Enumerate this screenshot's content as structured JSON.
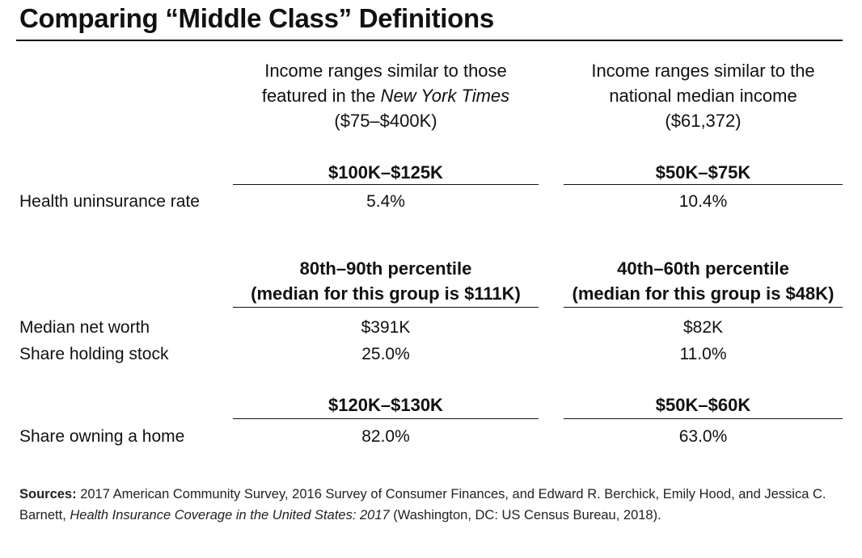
{
  "title": "Comparing “Middle Class” Definitions",
  "columns": [
    {
      "head_line1": "Income ranges similar to those",
      "head_line2_pre": "featured in  the ",
      "head_line2_italic": "New York Times",
      "head_line3": "($75–$400K)"
    },
    {
      "head_line1": "Income ranges similar to the",
      "head_line2_pre": "national median income",
      "head_line2_italic": "",
      "head_line3": "($61,372)"
    }
  ],
  "sections": [
    {
      "group_labels": [
        [
          "$100K–$125K"
        ],
        [
          "$50K–$75K"
        ]
      ],
      "rows": [
        {
          "label": "Health uninsurance rate",
          "values": [
            "5.4%",
            "10.4%"
          ]
        }
      ]
    },
    {
      "group_labels": [
        [
          "80th–90th percentile",
          "(median for this group is $111K)"
        ],
        [
          "40th–60th percentile",
          "(median for this group is $48K)"
        ]
      ],
      "rows": [
        {
          "label": "Median net worth",
          "values": [
            "$391K",
            "$82K"
          ]
        },
        {
          "label": "Share holding stock",
          "values": [
            "25.0%",
            "11.0%"
          ]
        }
      ]
    },
    {
      "group_labels": [
        [
          "$120K–$130K"
        ],
        [
          "$50K–$60K"
        ]
      ],
      "rows": [
        {
          "label": "Share owning a home",
          "values": [
            "82.0%",
            "63.0%"
          ]
        }
      ]
    }
  ],
  "sources": {
    "label": "Sources:",
    "text1": " 2017 American Community Survey, 2016 Survey of Consumer Finances, and Edward R. Berchick, Emily Hood, and Jessica C. Barnett, ",
    "italic": "Health Insurance Coverage in the United States: 2017",
    "text2": "  (Washington, DC: US Census Bureau, 2018)."
  }
}
